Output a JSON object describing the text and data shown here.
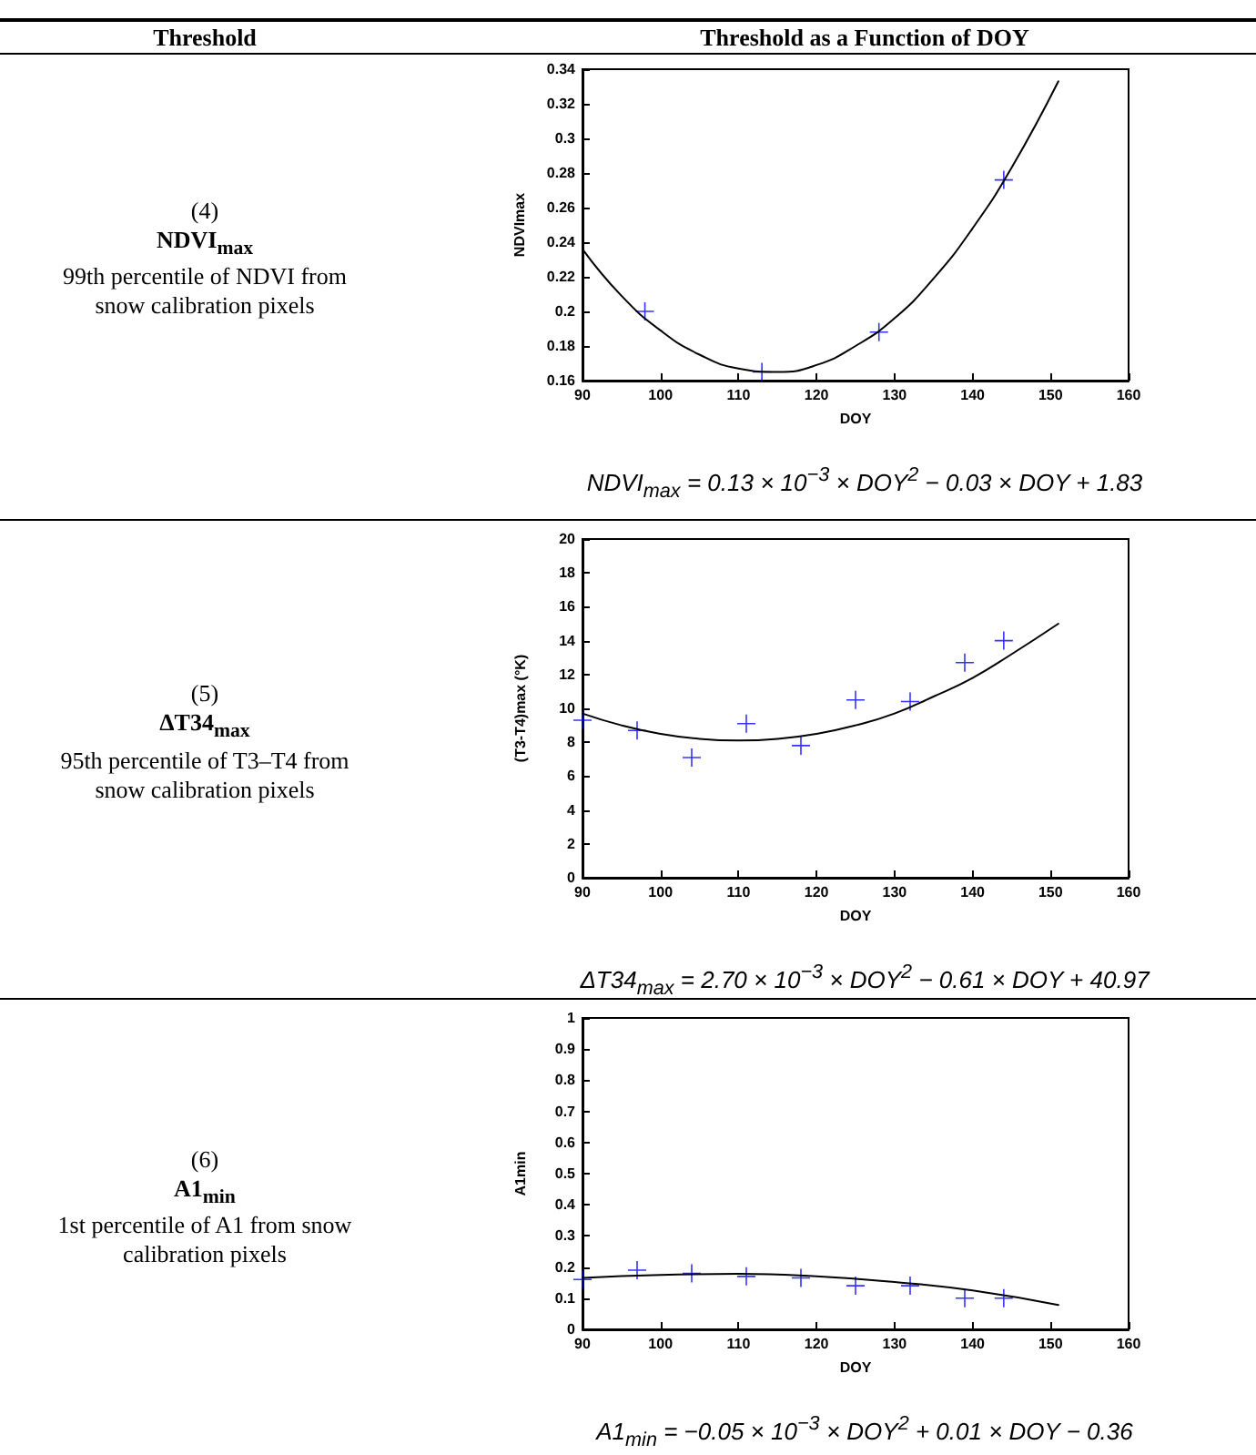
{
  "chart_data": [
    {
      "type": "scatter",
      "xlabel": "DOY",
      "ylabel": "NDVImax",
      "marker": "cross",
      "grid": false,
      "annotations": [
        "Threshold",
        "Threshold as a Function of DOY",
        "(4)",
        "NDVI$_{max}$",
        "99th percentile of NDVI from snow calibration pixels",
        "NDVI$_{max}$ = 0.13 × 10$^{−3}$ × DOY$^{2}$ − 0.03 × DOY + 1.83"
      ],
      "xlim": [
        90,
        160
      ],
      "xticks": [
        90,
        100,
        110,
        120,
        130,
        140,
        150,
        160
      ],
      "ylim": [
        0.16,
        0.34
      ],
      "yticks": [
        0.16,
        0.18,
        0.2,
        0.22,
        0.24,
        0.26,
        0.28,
        0.3,
        0.32,
        0.34
      ],
      "series": [
        {
          "color": "#0000ff",
          "x": [
            98,
            113,
            128,
            144
          ],
          "values": [
            0.2,
            0.165,
            0.188,
            0.276
          ]
        },
        {
          "type": "line",
          "color": "#000000",
          "marker": "none",
          "x": [
            90,
            95,
            100,
            105,
            110,
            115,
            120,
            125,
            130,
            135,
            140,
            145,
            151
          ],
          "values": [
            0.236,
            0.209,
            0.189,
            0.175,
            0.167,
            0.165,
            0.169,
            0.18,
            0.196,
            0.219,
            0.248,
            0.283,
            0.333
          ]
        }
      ]
    },
    {
      "type": "scatter",
      "xlabel": "DOY",
      "ylabel": "(T3-T4)max (°K)",
      "marker": "cross",
      "grid": false,
      "annotations": [
        "(5)",
        "ΔT34$_{max}$",
        "95th percentile of T3–T4 from snow calibration pixels",
        "ΔT34$_{max}$ = 2.70 × 10$^{−3}$ × DOY$^{2}$ − 0.61 × DOY + 40.97"
      ],
      "xlim": [
        90,
        160
      ],
      "xticks": [
        90,
        100,
        110,
        120,
        130,
        140,
        150,
        160
      ],
      "ylim": [
        0,
        20
      ],
      "yticks": [
        0,
        2,
        4,
        6,
        8,
        10,
        12,
        14,
        16,
        18,
        20
      ],
      "series": [
        {
          "color": "#0000ff",
          "x": [
            90,
            97,
            104,
            111,
            118,
            125,
            132,
            139,
            144
          ],
          "values": [
            9.3,
            8.7,
            7.1,
            9.1,
            7.8,
            10.5,
            10.4,
            12.7,
            14.0
          ]
        },
        {
          "type": "line",
          "color": "#000000",
          "marker": "none",
          "x": [
            90,
            95,
            100,
            105,
            110,
            115,
            120,
            125,
            130,
            135,
            140,
            145,
            151
          ],
          "values": [
            9.7,
            9.0,
            8.5,
            8.2,
            8.1,
            8.2,
            8.5,
            9.0,
            9.7,
            10.7,
            11.8,
            13.2,
            15.0
          ]
        }
      ]
    },
    {
      "type": "scatter",
      "xlabel": "DOY",
      "ylabel": "A1min",
      "marker": "cross",
      "grid": false,
      "annotations": [
        "(6)",
        "A1$_{min}$",
        "1st percentile of A1 from snow calibration pixels",
        "A1$_{min}$ = −0.05 × 10$^{−3}$ × DOY$^{2}$ + 0.01 × DOY − 0.36"
      ],
      "xlim": [
        90,
        160
      ],
      "xticks": [
        90,
        100,
        110,
        120,
        130,
        140,
        150,
        160
      ],
      "ylim": [
        0,
        1
      ],
      "yticks": [
        0,
        0.1,
        0.2,
        0.3,
        0.4,
        0.5,
        0.6,
        0.7,
        0.8,
        0.9,
        1
      ],
      "series": [
        {
          "color": "#0000ff",
          "x": [
            90,
            97,
            104,
            111,
            118,
            125,
            132,
            139,
            144
          ],
          "values": [
            0.16,
            0.19,
            0.18,
            0.17,
            0.165,
            0.14,
            0.14,
            0.1,
            0.1
          ]
        },
        {
          "type": "line",
          "color": "#000000",
          "marker": "none",
          "x": [
            90,
            100,
            110,
            120,
            130,
            140,
            151
          ],
          "values": [
            0.165,
            0.175,
            0.178,
            0.17,
            0.152,
            0.125,
            0.078
          ]
        }
      ]
    }
  ]
}
